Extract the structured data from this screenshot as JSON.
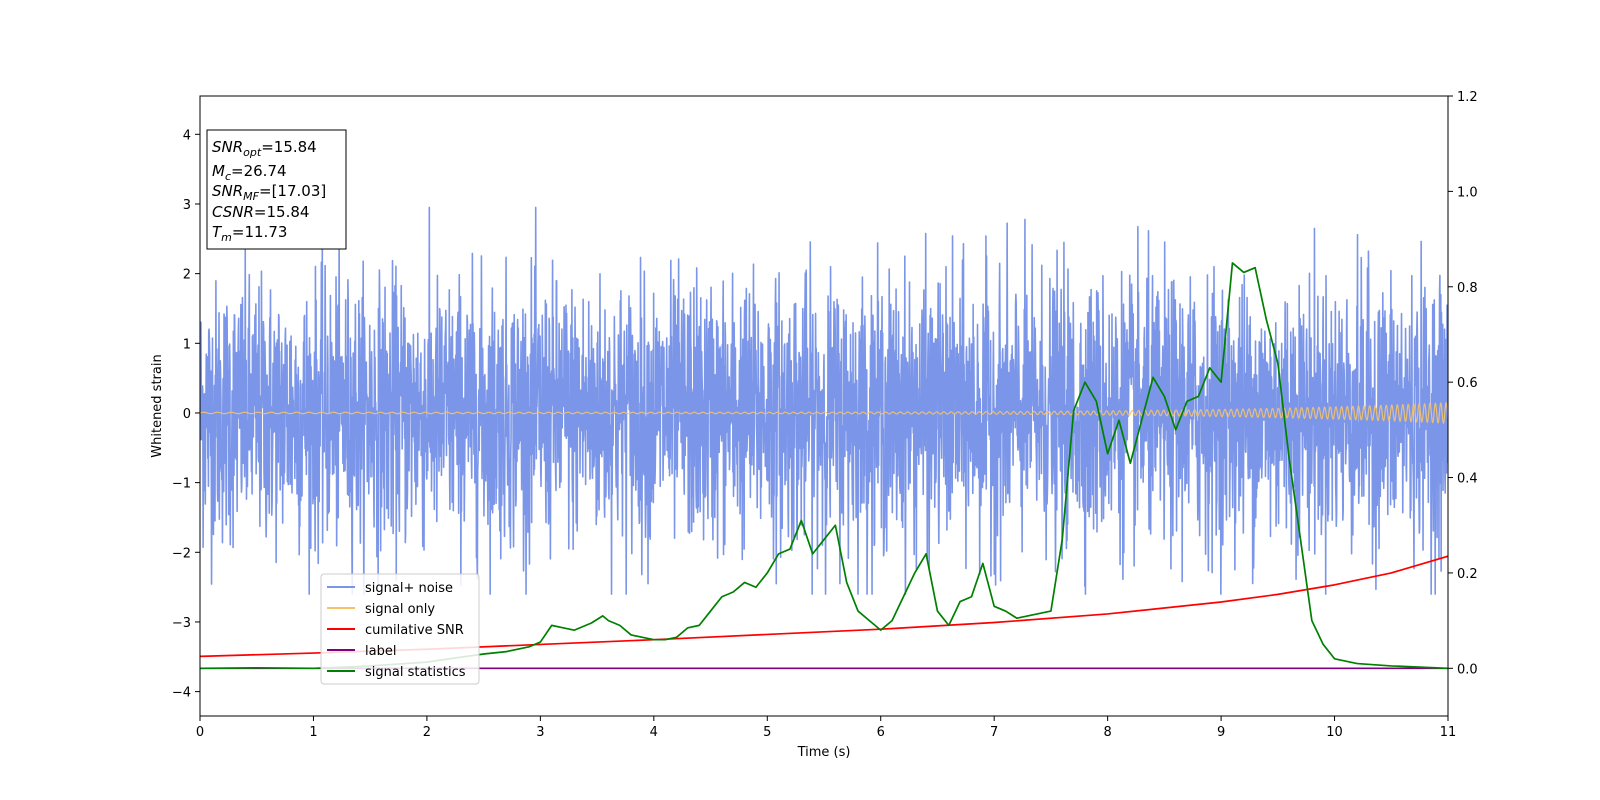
{
  "chart_data": {
    "type": "line",
    "xlabel": "Time (s)",
    "ylabel": "Whitened strain",
    "xlim": [
      0,
      11
    ],
    "ylim": [
      -4.35,
      4.55
    ],
    "ylim_right": [
      -0.1,
      1.2
    ],
    "xticks": [
      "0",
      "1",
      "2",
      "3",
      "4",
      "5",
      "6",
      "7",
      "8",
      "9",
      "10",
      "11"
    ],
    "yticks": [
      "−4",
      "−3",
      "−2",
      "−1",
      "0",
      "1",
      "2",
      "3",
      "4"
    ],
    "yticks_right": [
      "0.0",
      "0.2",
      "0.4",
      "0.6",
      "0.8",
      "1.0",
      "1.2"
    ],
    "grid": false,
    "legend_position": "lower-left",
    "annotation": {
      "lines": [
        {
          "sym": "SNR",
          "sub": "opt",
          "val": "=15.84"
        },
        {
          "sym": "M",
          "sub": "c",
          "val": "=26.74"
        },
        {
          "sym": "SNR",
          "sub": "MF",
          "val": "=[17.03]"
        },
        {
          "sym": "CSNR",
          "sub": "",
          "val": "=15.84"
        },
        {
          "sym": "T",
          "sub": "m",
          "val": "=11.73"
        }
      ]
    },
    "series": [
      {
        "name": "signal+ noise",
        "color": "#7b96e8",
        "axis": "left",
        "kind": "noise",
        "note_levels": {
          "typical_amplitude": 1.3,
          "max": 2.95,
          "min": -2.6
        }
      },
      {
        "name": "signal only",
        "color": "#f5c26b",
        "axis": "left",
        "kind": "chirp",
        "note_levels": {
          "start_amplitude": 0.01,
          "end_amplitude": 0.15
        }
      },
      {
        "name": "cumilative SNR",
        "color": "#ff0000",
        "axis": "right",
        "x": [
          0,
          1,
          2,
          3,
          4,
          5,
          6,
          7,
          8,
          9,
          9.5,
          10,
          10.5,
          11
        ],
        "y": [
          0.025,
          0.032,
          0.04,
          0.05,
          0.06,
          0.071,
          0.082,
          0.096,
          0.114,
          0.139,
          0.155,
          0.175,
          0.2,
          0.235
        ]
      },
      {
        "name": "label",
        "color": "#800080",
        "axis": "right",
        "x": [
          0,
          11
        ],
        "y": [
          0.0,
          0.0
        ]
      },
      {
        "name": "signal statistics",
        "color": "#008000",
        "axis": "right",
        "x": [
          0,
          0.5,
          1,
          1.5,
          2,
          2.2,
          2.5,
          2.7,
          2.9,
          3.0,
          3.1,
          3.2,
          3.3,
          3.45,
          3.55,
          3.6,
          3.7,
          3.8,
          3.9,
          4.0,
          4.1,
          4.2,
          4.3,
          4.4,
          4.5,
          4.6,
          4.7,
          4.8,
          4.9,
          5.0,
          5.1,
          5.2,
          5.3,
          5.4,
          5.5,
          5.6,
          5.7,
          5.8,
          5.9,
          6.0,
          6.1,
          6.2,
          6.3,
          6.4,
          6.5,
          6.6,
          6.7,
          6.8,
          6.9,
          7.0,
          7.1,
          7.2,
          7.3,
          7.4,
          7.5,
          7.6,
          7.7,
          7.8,
          7.9,
          8.0,
          8.1,
          8.2,
          8.3,
          8.4,
          8.5,
          8.6,
          8.7,
          8.8,
          8.9,
          9.0,
          9.1,
          9.2,
          9.3,
          9.4,
          9.5,
          9.6,
          9.7,
          9.8,
          9.9,
          10.0,
          10.2,
          10.5,
          10.8,
          11.0
        ],
        "y": [
          0.0,
          0.001,
          0.0,
          0.005,
          0.013,
          0.02,
          0.03,
          0.035,
          0.045,
          0.055,
          0.09,
          0.085,
          0.08,
          0.095,
          0.11,
          0.1,
          0.09,
          0.07,
          0.065,
          0.06,
          0.06,
          0.065,
          0.085,
          0.09,
          0.12,
          0.15,
          0.16,
          0.18,
          0.17,
          0.2,
          0.24,
          0.25,
          0.31,
          0.24,
          0.27,
          0.3,
          0.18,
          0.12,
          0.1,
          0.08,
          0.1,
          0.15,
          0.2,
          0.24,
          0.12,
          0.09,
          0.14,
          0.15,
          0.22,
          0.13,
          0.12,
          0.105,
          0.11,
          0.115,
          0.12,
          0.27,
          0.54,
          0.6,
          0.56,
          0.45,
          0.52,
          0.43,
          0.52,
          0.61,
          0.57,
          0.5,
          0.56,
          0.57,
          0.63,
          0.6,
          0.85,
          0.83,
          0.84,
          0.73,
          0.64,
          0.44,
          0.27,
          0.1,
          0.05,
          0.02,
          0.01,
          0.005,
          0.002,
          0.0
        ]
      }
    ]
  }
}
